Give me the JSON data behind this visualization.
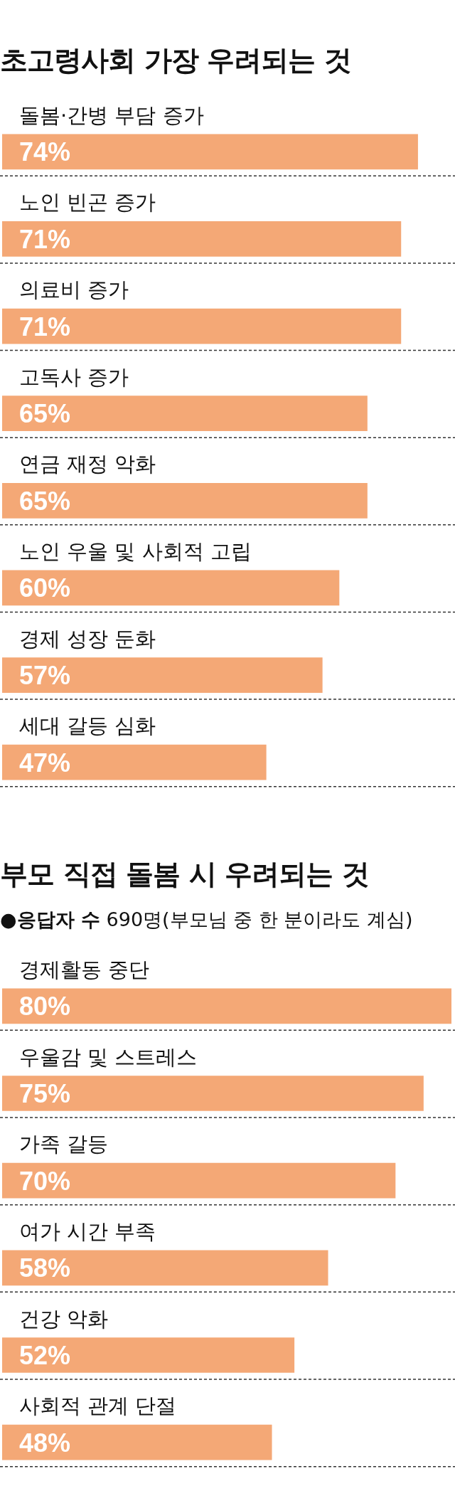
{
  "chart_data": [
    {
      "type": "bar",
      "orientation": "horizontal",
      "title": "초고령사회 가장 우려되는 것",
      "categories": [
        "돌봄·간병 부담 증가",
        "노인 빈곤 증가",
        "의료비 증가",
        "고독사 증가",
        "연금 재정 악화",
        "노인 우울 및 사회적 고립",
        "경제 성장 둔화",
        "세대 갈등 심화"
      ],
      "values": [
        74,
        71,
        71,
        65,
        65,
        60,
        57,
        47
      ],
      "value_labels": [
        "74%",
        "71%",
        "71%",
        "65%",
        "65%",
        "60%",
        "57%",
        "47%"
      ],
      "color": "#f4a876",
      "grid": "y",
      "tick_labels": "y",
      "legend": false
    },
    {
      "type": "bar",
      "orientation": "horizontal",
      "title": "부모 직접 돌봄 시 우려되는 것",
      "subtitle": "●응답자 수 690명(부모님 중 한 분이라도 계심)",
      "categories": [
        "경제활동 중단",
        "우울감 및 스트레스",
        "가족 갈등",
        "여가 시간 부족",
        "건강 악화",
        "사회적 관계 단절"
      ],
      "values": [
        80,
        75,
        70,
        58,
        52,
        48
      ],
      "value_labels": [
        "80%",
        "75%",
        "70%",
        "58%",
        "52%",
        "48%"
      ],
      "color": "#f4a876",
      "grid": "y",
      "tick_labels": "y",
      "legend": false
    }
  ]
}
